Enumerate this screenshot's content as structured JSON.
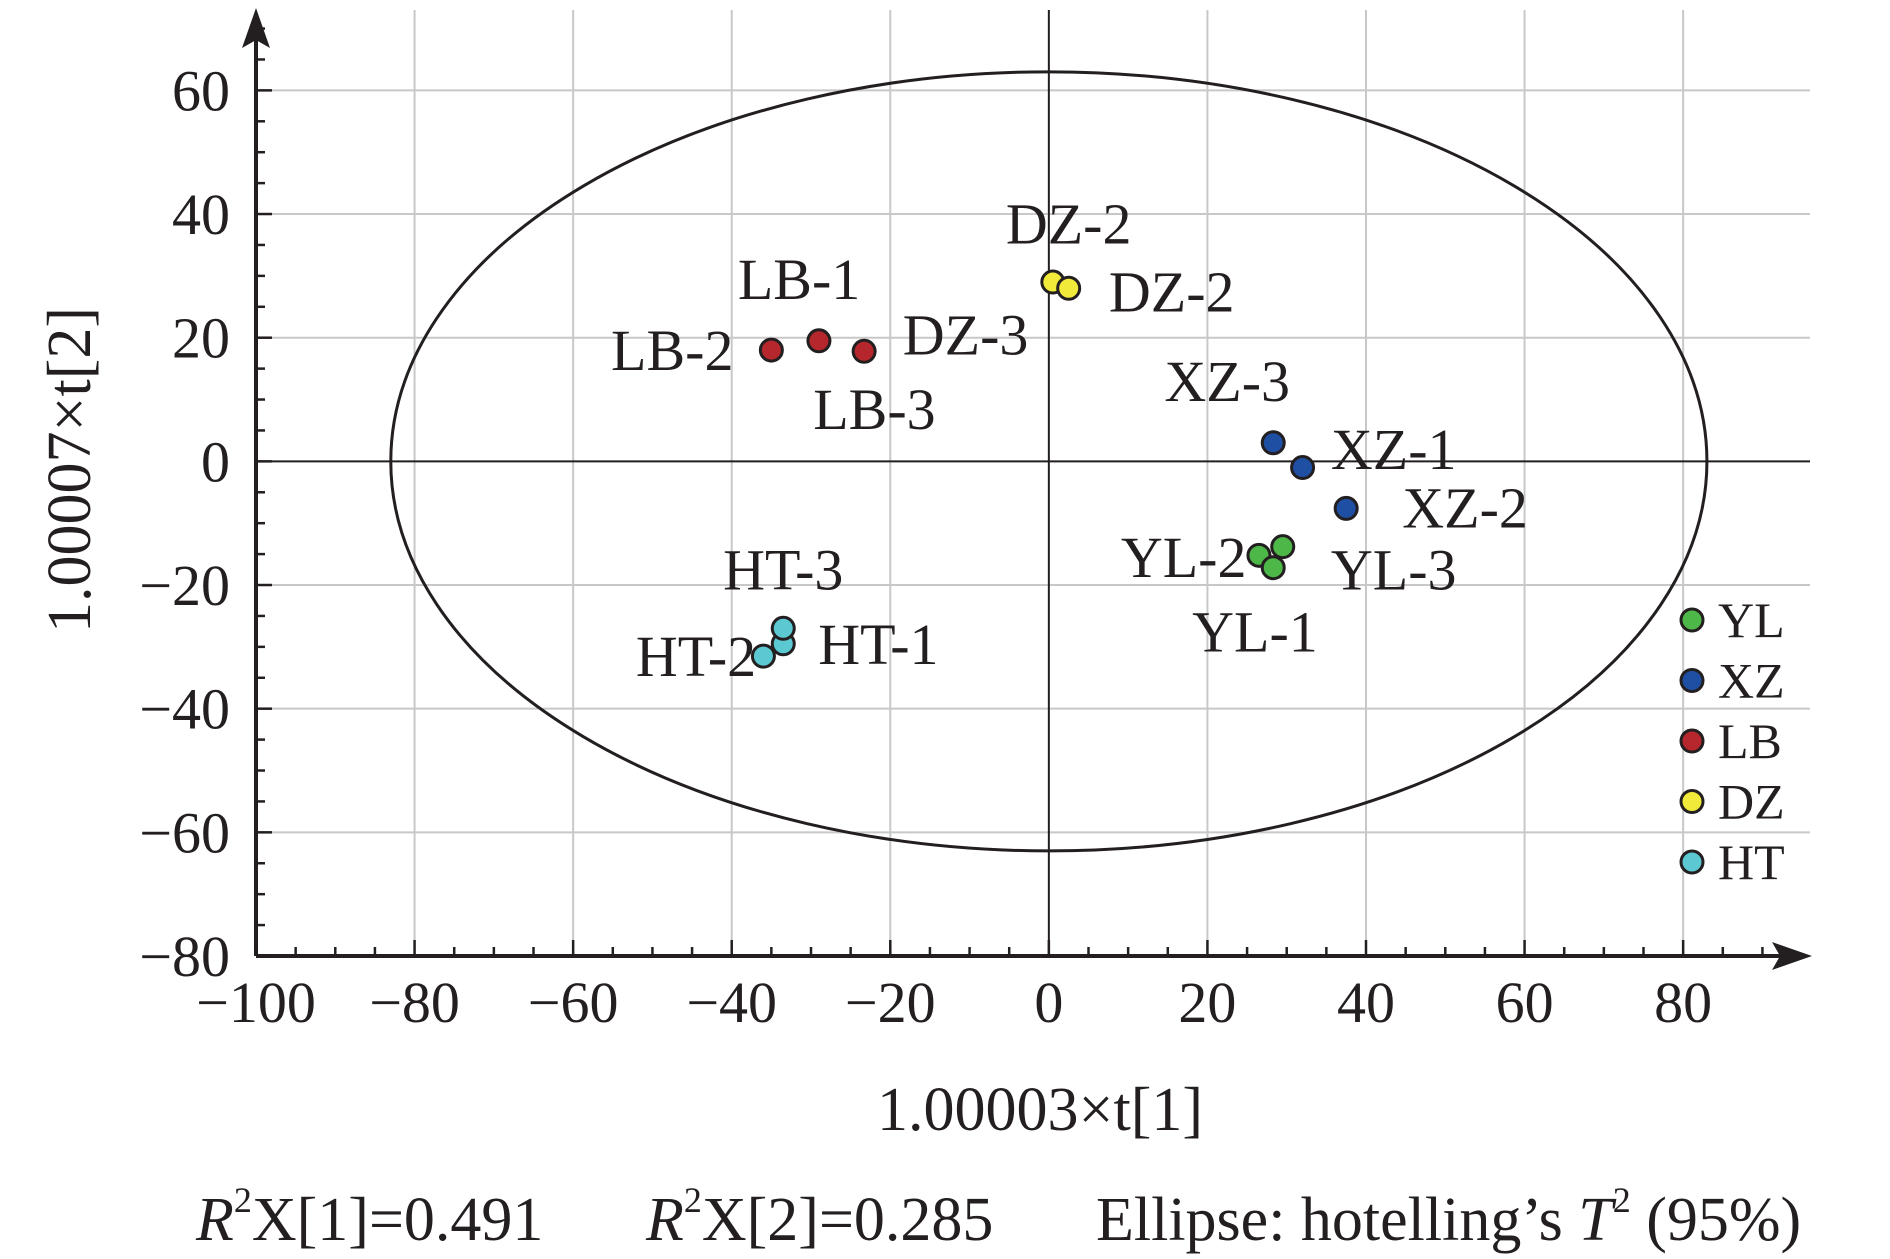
{
  "chart_data": {
    "type": "scatter",
    "xlabel": "1.00003×t[1]",
    "ylabel": "1.00007×t[2]",
    "xlim": [
      -100,
      96
    ],
    "ylim": [
      -80,
      73
    ],
    "x_ticks": [
      -100,
      -80,
      -60,
      -40,
      -20,
      0,
      20,
      40,
      60,
      80
    ],
    "y_ticks": [
      -80,
      -60,
      -40,
      -20,
      0,
      20,
      40,
      60
    ],
    "x_tick_labels": [
      "−100",
      "−80",
      "−60",
      "−40",
      "−20",
      "0",
      "20",
      "40",
      "60",
      "80"
    ],
    "y_tick_labels": [
      "−80",
      "−60",
      "−40",
      "−20",
      "0",
      "20",
      "40",
      "60"
    ],
    "grid": true,
    "legend_position": "bottom-right",
    "ellipse": {
      "center": [
        0,
        0
      ],
      "semi_axis_x": 83,
      "semi_axis_y": 63
    },
    "series": [
      {
        "name": "YL",
        "color": "#4db848",
        "points": [
          {
            "x": 26.5,
            "y": -15.2,
            "label": "YL-2"
          },
          {
            "x": 29.5,
            "y": -13.8,
            "label": "YL-3"
          },
          {
            "x": 28.3,
            "y": -17.2,
            "label": "YL-1"
          }
        ]
      },
      {
        "name": "XZ",
        "color": "#1f4fa3",
        "points": [
          {
            "x": 28.3,
            "y": 3.0,
            "label": "XZ-3"
          },
          {
            "x": 32.0,
            "y": -1.0,
            "label": "XZ-1"
          },
          {
            "x": 37.5,
            "y": -7.6,
            "label": "XZ-2"
          }
        ]
      },
      {
        "name": "LB",
        "color": "#b5272d",
        "points": [
          {
            "x": -29.0,
            "y": 19.5,
            "label": "LB-1"
          },
          {
            "x": -35.0,
            "y": 18.0,
            "label": "LB-2"
          },
          {
            "x": -23.3,
            "y": 17.8,
            "label": "LB-3"
          }
        ]
      },
      {
        "name": "DZ",
        "color": "#f2ea3a",
        "points": [
          {
            "x": 0.5,
            "y": 29.0,
            "label": "DZ-2"
          },
          {
            "x": 2.5,
            "y": 28.0,
            "label": "DZ-2"
          }
        ]
      },
      {
        "name": "HT",
        "color": "#5cc8d2",
        "points": [
          {
            "x": -33.5,
            "y": -29.5,
            "label": "HT-1"
          },
          {
            "x": -36.0,
            "y": -31.5,
            "label": "HT-2"
          },
          {
            "x": -33.5,
            "y": -27.0,
            "label": "HT-3"
          }
        ]
      }
    ],
    "annotations": [
      {
        "text": "DZ-2",
        "x": 2.5,
        "y": 38.5
      },
      {
        "text": "DZ-2",
        "x": 15.5,
        "y": 27.5
      },
      {
        "text": "LB-1",
        "x": -31.5,
        "y": 29.5
      },
      {
        "text": "LB-2",
        "x": -47.5,
        "y": 18.0
      },
      {
        "text": "DZ-3",
        "x": -10.5,
        "y": 20.5
      },
      {
        "text": "LB-3",
        "x": -22.0,
        "y": 8.5
      },
      {
        "text": "XZ-3",
        "x": 22.5,
        "y": 13.0
      },
      {
        "text": "XZ-1",
        "x": 43.5,
        "y": 2.0
      },
      {
        "text": "XZ-2",
        "x": 52.5,
        "y": -7.5
      },
      {
        "text": "YL-2",
        "x": 17.0,
        "y": -15.5
      },
      {
        "text": "YL-3",
        "x": 43.5,
        "y": -17.5
      },
      {
        "text": "YL-1",
        "x": 26.0,
        "y": -27.5
      },
      {
        "text": "HT-3",
        "x": -33.5,
        "y": -17.5
      },
      {
        "text": "HT-2",
        "x": -44.5,
        "y": -31.5
      },
      {
        "text": "HT-1",
        "x": -21.5,
        "y": -29.5
      }
    ]
  },
  "footer": {
    "r2x1_italic": "R",
    "r2x1_sup": "2",
    "r2x1_rest": "X[1]=0.491",
    "r2x2_italic": "R",
    "r2x2_sup": "2",
    "r2x2_rest": "X[2]=0.285",
    "ellipse_prefix": "Ellipse: hotelling’s ",
    "ellipse_italic": "T",
    "ellipse_sup": "2",
    "ellipse_suffix": " (95%)"
  }
}
